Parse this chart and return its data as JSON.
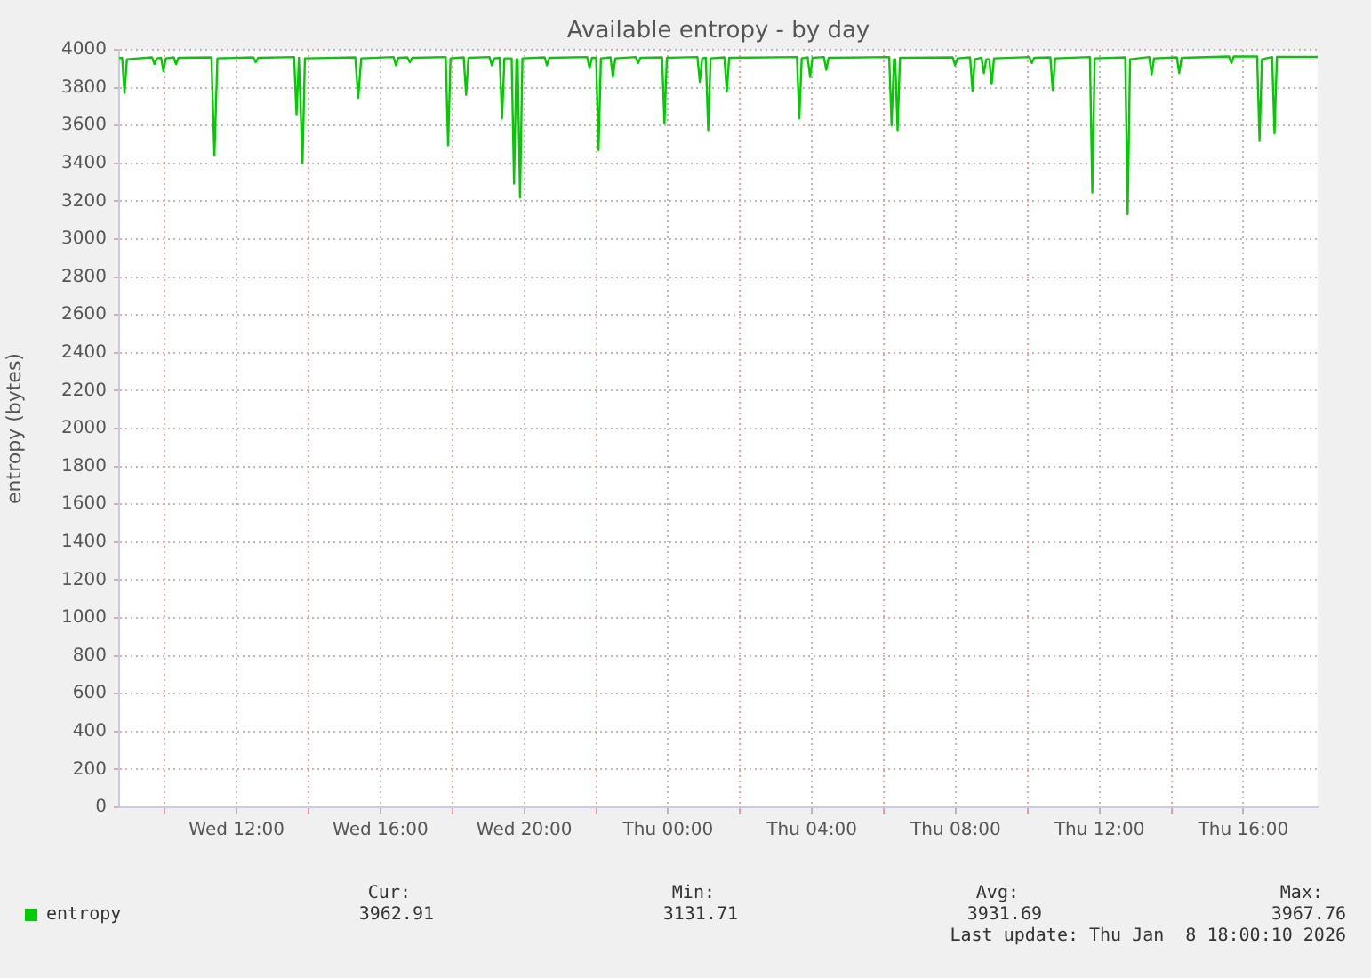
{
  "chart_data": {
    "type": "line",
    "title": "Available entropy - by day",
    "ylabel": "entropy (bytes)",
    "xlim": [
      "2026-01-07T08:44",
      "2026-01-08T18:04"
    ],
    "xticks": [
      {
        "value": "2026-01-07T10:00",
        "label": null
      },
      {
        "value": "2026-01-07T12:00",
        "label": "Wed 12:00"
      },
      {
        "value": "2026-01-07T14:00",
        "label": null
      },
      {
        "value": "2026-01-07T16:00",
        "label": "Wed 16:00"
      },
      {
        "value": "2026-01-07T18:00",
        "label": null
      },
      {
        "value": "2026-01-07T20:00",
        "label": "Wed 20:00"
      },
      {
        "value": "2026-01-07T22:00",
        "label": null
      },
      {
        "value": "2026-01-08T00:00",
        "label": "Thu 00:00"
      },
      {
        "value": "2026-01-08T02:00",
        "label": null
      },
      {
        "value": "2026-01-08T04:00",
        "label": "Thu 04:00"
      },
      {
        "value": "2026-01-08T06:00",
        "label": null
      },
      {
        "value": "2026-01-08T08:00",
        "label": "Thu 08:00"
      },
      {
        "value": "2026-01-08T10:00",
        "label": null
      },
      {
        "value": "2026-01-08T12:00",
        "label": "Thu 12:00"
      },
      {
        "value": "2026-01-08T14:00",
        "label": null
      },
      {
        "value": "2026-01-08T16:00",
        "label": "Thu 16:00"
      }
    ],
    "ylim": [
      0,
      4000
    ],
    "yticks": [
      0,
      200,
      400,
      600,
      800,
      1000,
      1200,
      1400,
      1600,
      1800,
      2000,
      2200,
      2400,
      2600,
      2800,
      3000,
      3200,
      3400,
      3600,
      3800,
      4000
    ],
    "grid": true,
    "legend": "bottom left",
    "marker": "none",
    "line_style": "solid",
    "annotations": [
      "Cur:",
      "3962.91",
      "Min:",
      "3131.71",
      "Avg:",
      "3931.69",
      "Max:",
      "3967.76",
      "Last update: Thu Jan  8 18:00:10 2026"
    ],
    "series": [
      {
        "name": "entropy",
        "color": "#00cc00",
        "x": [
          "2026-01-07T08:44",
          "2026-01-07T08:49",
          "2026-01-07T08:53",
          "2026-01-07T08:57",
          "2026-01-07T09:39",
          "2026-01-07T09:43",
          "2026-01-07T09:47",
          "2026-01-07T09:54",
          "2026-01-07T09:58",
          "2026-01-07T10:02",
          "2026-01-07T10:15",
          "2026-01-07T10:19",
          "2026-01-07T10:23",
          "2026-01-07T11:18",
          "2026-01-07T11:23",
          "2026-01-07T11:28",
          "2026-01-07T12:28",
          "2026-01-07T12:32",
          "2026-01-07T12:36",
          "2026-01-07T13:36",
          "2026-01-07T13:40",
          "2026-01-07T13:44",
          "2026-01-07T13:46",
          "2026-01-07T13:50",
          "2026-01-07T13:54",
          "2026-01-07T15:18",
          "2026-01-07T15:23",
          "2026-01-07T15:28",
          "2026-01-07T16:22",
          "2026-01-07T16:26",
          "2026-01-07T16:30",
          "2026-01-07T16:45",
          "2026-01-07T16:49",
          "2026-01-07T16:53",
          "2026-01-07T17:49",
          "2026-01-07T17:53",
          "2026-01-07T17:57",
          "2026-01-07T18:19",
          "2026-01-07T18:23",
          "2026-01-07T18:27",
          "2026-01-07T19:02",
          "2026-01-07T19:06",
          "2026-01-07T19:10",
          "2026-01-07T19:19",
          "2026-01-07T19:23",
          "2026-01-07T19:27",
          "2026-01-07T19:39",
          "2026-01-07T19:43",
          "2026-01-07T19:47",
          "2026-01-07T19:49",
          "2026-01-07T19:53",
          "2026-01-07T19:57",
          "2026-01-07T20:34",
          "2026-01-07T20:38",
          "2026-01-07T20:42",
          "2026-01-07T21:45",
          "2026-01-07T21:49",
          "2026-01-07T21:53",
          "2026-01-07T22:00",
          "2026-01-07T22:04",
          "2026-01-07T22:08",
          "2026-01-07T22:24",
          "2026-01-07T22:28",
          "2026-01-07T22:32",
          "2026-01-07T23:06",
          "2026-01-07T23:10",
          "2026-01-07T23:14",
          "2026-01-07T23:50",
          "2026-01-07T23:54",
          "2026-01-07T23:58",
          "2026-01-08T00:49",
          "2026-01-08T00:53",
          "2026-01-08T00:57",
          "2026-01-08T01:03",
          "2026-01-08T01:07",
          "2026-01-08T01:11",
          "2026-01-08T01:34",
          "2026-01-08T01:38",
          "2026-01-08T01:42",
          "2026-01-08T03:35",
          "2026-01-08T03:39",
          "2026-01-08T03:43",
          "2026-01-08T03:53",
          "2026-01-08T03:57",
          "2026-01-08T04:01",
          "2026-01-08T04:20",
          "2026-01-08T04:24",
          "2026-01-08T04:28",
          "2026-01-08T06:09",
          "2026-01-08T06:13",
          "2026-01-08T06:17",
          "2026-01-08T06:19",
          "2026-01-08T06:23",
          "2026-01-08T06:27",
          "2026-01-08T07:55",
          "2026-01-08T07:59",
          "2026-01-08T08:03",
          "2026-01-08T08:24",
          "2026-01-08T08:28",
          "2026-01-08T08:32",
          "2026-01-08T08:43",
          "2026-01-08T08:47",
          "2026-01-08T08:51",
          "2026-01-08T08:56",
          "2026-01-08T09:00",
          "2026-01-08T09:04",
          "2026-01-08T10:03",
          "2026-01-08T10:07",
          "2026-01-08T10:11",
          "2026-01-08T10:38",
          "2026-01-08T10:42",
          "2026-01-08T10:46",
          "2026-01-08T11:44",
          "2026-01-08T11:48",
          "2026-01-08T11:52",
          "2026-01-08T12:43",
          "2026-01-08T12:47",
          "2026-01-08T12:51",
          "2026-01-08T13:23",
          "2026-01-08T13:27",
          "2026-01-08T13:31",
          "2026-01-08T14:09",
          "2026-01-08T14:13",
          "2026-01-08T14:17",
          "2026-01-08T15:36",
          "2026-01-08T15:40",
          "2026-01-08T15:44",
          "2026-01-08T16:23",
          "2026-01-08T16:27",
          "2026-01-08T16:31",
          "2026-01-08T16:48",
          "2026-01-08T16:52",
          "2026-01-08T16:56",
          "2026-01-08T18:04"
        ],
        "values": [
          3955,
          3958,
          3772,
          3950,
          3960,
          3925,
          3955,
          3958,
          3888,
          3955,
          3960,
          3925,
          3958,
          3960,
          3440,
          3955,
          3960,
          3934,
          3958,
          3962,
          3659,
          3958,
          3958,
          3402,
          3955,
          3960,
          3747,
          3955,
          3962,
          3918,
          3958,
          3960,
          3934,
          3958,
          3962,
          3496,
          3955,
          3960,
          3762,
          3958,
          3962,
          3918,
          3955,
          3958,
          3637,
          3955,
          3955,
          3293,
          3950,
          3950,
          3220,
          3955,
          3960,
          3918,
          3958,
          3962,
          3903,
          3958,
          3958,
          3471,
          3955,
          3960,
          3856,
          3955,
          3962,
          3930,
          3958,
          3960,
          3612,
          3958,
          3962,
          3831,
          3955,
          3958,
          3575,
          3955,
          3960,
          3778,
          3958,
          3962,
          3637,
          3955,
          3960,
          3856,
          3958,
          3962,
          3894,
          3958,
          3962,
          3600,
          3950,
          3950,
          3575,
          3958,
          3960,
          3918,
          3955,
          3960,
          3784,
          3950,
          3958,
          3878,
          3950,
          3950,
          3819,
          3955,
          3962,
          3930,
          3958,
          3960,
          3787,
          3955,
          3962,
          3246,
          3955,
          3960,
          3132,
          3950,
          3962,
          3870,
          3955,
          3960,
          3878,
          3958,
          3965,
          3930,
          3965,
          3965,
          3518,
          3950,
          3962,
          3559,
          3963,
          3963
        ]
      }
    ]
  }
}
